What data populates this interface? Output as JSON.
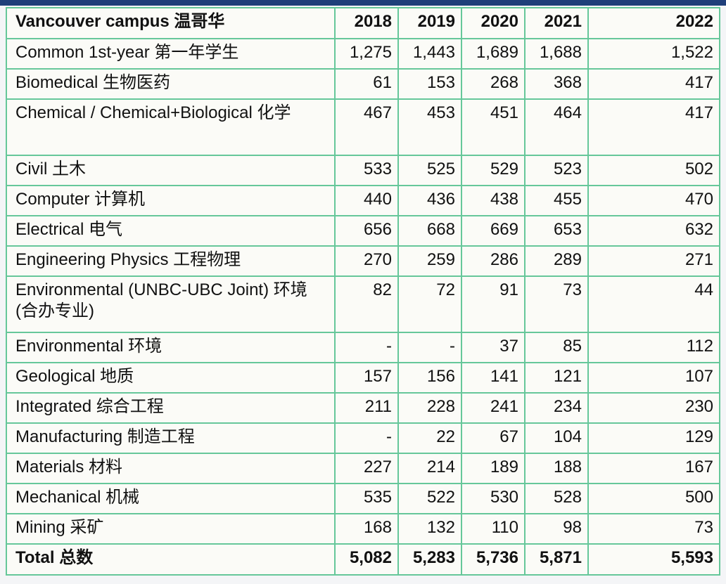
{
  "table": {
    "header": {
      "label": "Vancouver campus 温哥华",
      "years": [
        "2018",
        "2019",
        "2020",
        "2021",
        "2022"
      ]
    },
    "rows": [
      {
        "name": "Common 1st-year 第一年学生",
        "values": [
          "1,275",
          "1,443",
          "1,689",
          "1,688",
          "1,522"
        ]
      },
      {
        "name": "Biomedical 生物医药",
        "values": [
          "61",
          "153",
          "268",
          "368",
          "417"
        ]
      },
      {
        "name": "Chemical / Chemical+Biological 化学",
        "values": [
          "467",
          "453",
          "451",
          "464",
          "417"
        ]
      },
      {
        "name": "Civil 土木",
        "values": [
          "533",
          "525",
          "529",
          "523",
          "502"
        ]
      },
      {
        "name": "Computer 计算机",
        "values": [
          "440",
          "436",
          "438",
          "455",
          "470"
        ]
      },
      {
        "name": "Electrical 电气",
        "values": [
          "656",
          "668",
          "669",
          "653",
          "632"
        ]
      },
      {
        "name": "Engineering Physics 工程物理",
        "values": [
          "270",
          "259",
          "286",
          "289",
          "271"
        ]
      },
      {
        "name": "Environmental (UNBC-UBC Joint) 环境 (合办专业)",
        "values": [
          "82",
          "72",
          "91",
          "73",
          "44"
        ]
      },
      {
        "name": "Environmental 环境",
        "values": [
          "-",
          "-",
          "37",
          "85",
          "112"
        ]
      },
      {
        "name": "Geological 地质",
        "values": [
          "157",
          "156",
          "141",
          "121",
          "107"
        ]
      },
      {
        "name": "Integrated 综合工程",
        "values": [
          "211",
          "228",
          "241",
          "234",
          "230"
        ]
      },
      {
        "name": "Manufacturing 制造工程",
        "values": [
          "-",
          "22",
          "67",
          "104",
          "129"
        ]
      },
      {
        "name": "Materials 材料",
        "values": [
          "227",
          "214",
          "189",
          "188",
          "167"
        ]
      },
      {
        "name": "Mechanical 机械",
        "values": [
          "535",
          "522",
          "530",
          "528",
          "500"
        ]
      },
      {
        "name": "Mining 采矿",
        "values": [
          "168",
          "132",
          "110",
          "98",
          "73"
        ]
      }
    ],
    "total": {
      "name": "Total 总数",
      "values": [
        "5,082",
        "5,283",
        "5,736",
        "5,871",
        "5,593"
      ]
    }
  },
  "colors": {
    "border": "#66c79a",
    "top_bar": "#1f3f7a"
  }
}
